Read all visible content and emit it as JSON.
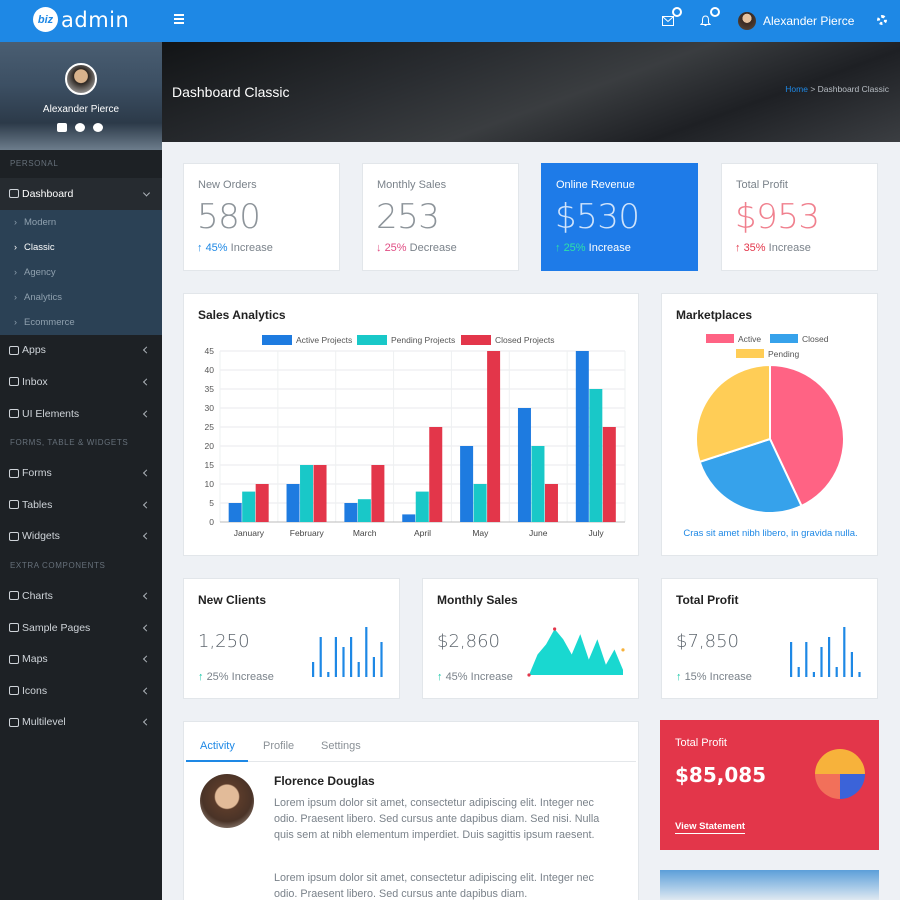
{
  "app": {
    "logo_badge": "biz",
    "logo_text": "admin"
  },
  "topbar": {
    "user_name": "Alexander Pierce"
  },
  "sidebar": {
    "user_name": "Alexander Pierce",
    "sections": {
      "personal": "PERSONAL",
      "forms": "FORMS, TABLE & WIDGETS",
      "extra": "EXTRA COMPONENTS"
    },
    "dashboard": "Dashboard",
    "submenu": [
      "Modern",
      "Classic",
      "Agency",
      "Analytics",
      "Ecommerce"
    ],
    "apps": "Apps",
    "inbox": "Inbox",
    "ui_elements": "UI Elements",
    "forms": "Forms",
    "tables": "Tables",
    "widgets": "Widgets",
    "charts": "Charts",
    "sample_pages": "Sample Pages",
    "maps": "Maps",
    "icons": "Icons",
    "multilevel": "Multilevel"
  },
  "header": {
    "title": "Dashboard Classic",
    "breadcrumb_home": "Home",
    "breadcrumb_sep": " > ",
    "breadcrumb_current": "Dashboard Classic"
  },
  "stats": [
    {
      "label": "New Orders",
      "value": "580",
      "pct": "45%",
      "text": " Increase",
      "color": "#1e88e5"
    },
    {
      "label": "Monthly Sales",
      "value": "253",
      "pct": "25%",
      "text": " Decrease",
      "color": "#e04e84"
    },
    {
      "label": "Online Revenue",
      "value": "$530",
      "pct": "25%",
      "text": " Increase",
      "color": "#2ee0a8"
    },
    {
      "label": "Total Profit",
      "value": "$953",
      "pct": "35%",
      "text": " Increase",
      "color": "#e3364a"
    }
  ],
  "sales_analytics": {
    "title": "Sales Analytics"
  },
  "marketplaces": {
    "title": "Marketplaces",
    "caption": "Cras sit amet nibh libero, in gravida nulla."
  },
  "mini_cards": [
    {
      "title": "New Clients",
      "value": "1,250",
      "pct": "25%",
      "text": " Increase"
    },
    {
      "title": "Monthly Sales",
      "value": "$2,860",
      "pct": "45%",
      "text": " Increase"
    },
    {
      "title": "Total Profit",
      "value": "$7,850",
      "pct": "15%",
      "text": " Increase"
    }
  ],
  "activity": {
    "tabs": [
      "Activity",
      "Profile",
      "Settings"
    ],
    "name": "Florence Douglas",
    "text1": "Lorem ipsum dolor sit amet, consectetur adipiscing elit. Integer nec odio. Praesent libero. Sed cursus ante dapibus diam. Sed nisi. Nulla quis sem at nibh elementum imperdiet. Duis sagittis ipsum raesent.",
    "text2": "Lorem ipsum dolor sit amet, consectetur adipiscing elit. Integer nec odio. Praesent libero. Sed cursus ante dapibus diam."
  },
  "profit_card": {
    "label": "Total Profit",
    "value": "$85,085",
    "link": "View Statement"
  },
  "colors": {
    "primary": "#1e88e5",
    "active_series": "#1e7be0",
    "pending_series": "#19c8c8",
    "closed_series": "#e3364a",
    "pie_active": "#ff6384",
    "pie_closed": "#36a2eb",
    "pie_pending": "#ffcd56"
  },
  "chart_data": [
    {
      "type": "bar",
      "title": "Sales Analytics",
      "categories": [
        "January",
        "February",
        "March",
        "April",
        "May",
        "June",
        "July"
      ],
      "series": [
        {
          "name": "Active Projects",
          "values": [
            5,
            10,
            5,
            2,
            20,
            30,
            45
          ]
        },
        {
          "name": "Pending Projects",
          "values": [
            8,
            15,
            6,
            8,
            10,
            20,
            35
          ]
        },
        {
          "name": "Closed Projects",
          "values": [
            10,
            15,
            15,
            25,
            45,
            10,
            25
          ]
        }
      ],
      "ylim": [
        0,
        45
      ],
      "yticks": [
        0,
        5,
        10,
        15,
        20,
        25,
        30,
        35,
        40,
        45
      ],
      "legend": "top",
      "grid": true
    },
    {
      "type": "pie",
      "title": "Marketplaces",
      "labels": [
        "Active",
        "Closed",
        "Pending"
      ],
      "values": [
        43,
        27,
        30
      ],
      "legend": "top"
    },
    {
      "type": "bar",
      "title": "New Clients",
      "values": [
        3,
        8,
        1,
        8,
        6,
        8,
        3,
        10,
        4,
        7
      ]
    },
    {
      "type": "area",
      "title": "Monthly Sales",
      "values": [
        0,
        4,
        6,
        9,
        7,
        4,
        8,
        3,
        7,
        2,
        5,
        1
      ]
    },
    {
      "type": "bar",
      "title": "Total Profit",
      "values": [
        7,
        2,
        7,
        1,
        6,
        8,
        2,
        10,
        5,
        1
      ]
    }
  ]
}
